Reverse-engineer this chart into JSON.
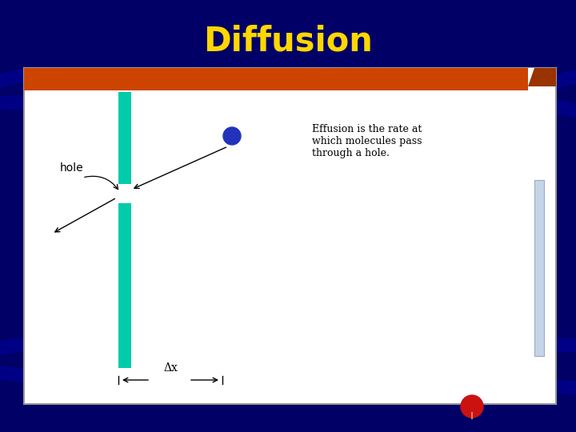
{
  "title": "Diffusion",
  "title_color": "#FFD700",
  "title_fontsize": 30,
  "bg_color": "#000066",
  "slide_bg": "#ffffff",
  "slide_border_color": "#999999",
  "slide_orange_bar_color": "#cc4400",
  "teal_bar_color": "#00ccaa",
  "molecule_color": "#2233bb",
  "effusion_text": "Effusion is the rate at\nwhich molecules pass\nthrough a hole.",
  "effusion_fontsize": 9,
  "hole_text": "hole",
  "hole_fontsize": 10,
  "delta_x_text": "Δx",
  "scrollbar_color": "#c5d5e8",
  "scrollbar_border": "#9aacbe",
  "pin_color": "#cc1111"
}
